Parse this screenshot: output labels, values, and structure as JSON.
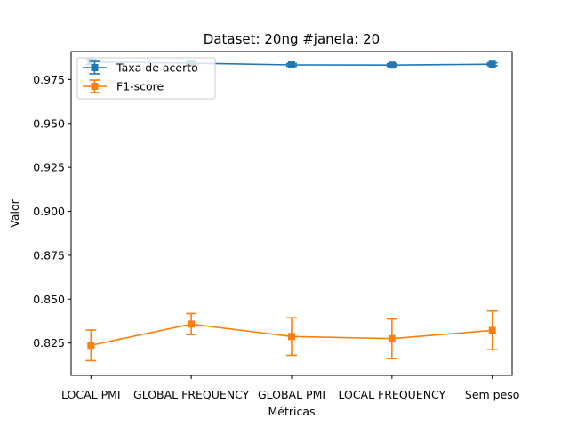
{
  "chart_data": {
    "type": "line",
    "title": "Dataset: 20ng #janela: 20",
    "xlabel": "Métricas",
    "ylabel": "Valor",
    "categories": [
      "LOCAL PMI",
      "GLOBAL FREQUENCY",
      "GLOBAL PMI",
      "LOCAL FREQUENCY",
      "Sem peso"
    ],
    "ylim": [
      0.8066,
      0.9909
    ],
    "yticks": [
      0.825,
      0.85,
      0.875,
      0.9,
      0.925,
      0.95,
      0.975
    ],
    "ytick_labels": [
      "0.825",
      "0.850",
      "0.875",
      "0.900",
      "0.925",
      "0.950",
      "0.975"
    ],
    "legend_position": "top-left",
    "series": [
      {
        "name": "Taxa de acerto",
        "color": "#1f77b4",
        "marker": "square",
        "values": [
          0.985,
          0.9843,
          0.9833,
          0.9832,
          0.9837
        ],
        "errors": [
          0.0015,
          0.0006,
          0.0008,
          0.0008,
          0.0008
        ]
      },
      {
        "name": "F1-score",
        "color": "#ff7f0e",
        "marker": "square",
        "values": [
          0.8237,
          0.8358,
          0.8287,
          0.8275,
          0.8322
        ],
        "errors": [
          0.0087,
          0.006,
          0.0107,
          0.0112,
          0.011
        ]
      }
    ]
  }
}
